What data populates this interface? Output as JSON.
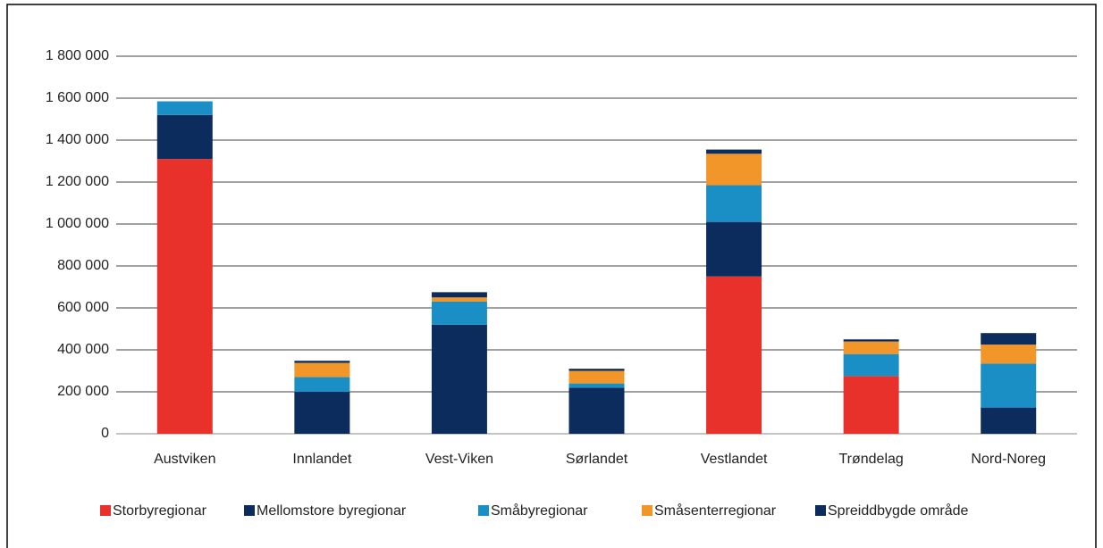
{
  "chart_data": {
    "type": "stacked_bar",
    "categories": [
      "Austviken",
      "Innlandet",
      "Vest-Viken",
      "Sørlandet",
      "Vestlandet",
      "Trøndelag",
      "Nord-Noreg"
    ],
    "series": [
      {
        "name": "Storbyregionar",
        "color": "#e8312a",
        "values": [
          1310000,
          0,
          0,
          0,
          750000,
          275000,
          0
        ]
      },
      {
        "name": "Mellomstore byregionar",
        "color": "#0b2c5c",
        "values": [
          210000,
          200000,
          520000,
          220000,
          260000,
          0,
          125000
        ]
      },
      {
        "name": "Småbyregionar",
        "color": "#1a8fc6",
        "values": [
          65000,
          70000,
          110000,
          20000,
          175000,
          105000,
          210000
        ]
      },
      {
        "name": "Småsenterregionar",
        "color": "#f3962a",
        "values": [
          0,
          68000,
          20000,
          60000,
          150000,
          60000,
          90000
        ]
      },
      {
        "name": "Spreiddbygde område",
        "color": "#0b2c5c",
        "values": [
          0,
          10000,
          25000,
          10000,
          20000,
          10000,
          55000
        ]
      }
    ],
    "ylim": [
      0,
      1800000
    ],
    "yticks": [
      0,
      {
        "value": 200000,
        "label": "200 000"
      },
      {
        "value": 400000,
        "label": "400 000"
      },
      {
        "value": 600000,
        "label": "600 000"
      },
      {
        "value": 800000,
        "label": "800 000"
      },
      {
        "value": 1000000,
        "label": "1 000 000"
      },
      {
        "value": 1200000,
        "label": "1 200 000"
      },
      {
        "value": 1400000,
        "label": "1 400 000"
      },
      {
        "value": 1600000,
        "label": "1 600 000"
      },
      {
        "value": 1800000,
        "label": "1 800 000"
      }
    ],
    "grid": true
  }
}
